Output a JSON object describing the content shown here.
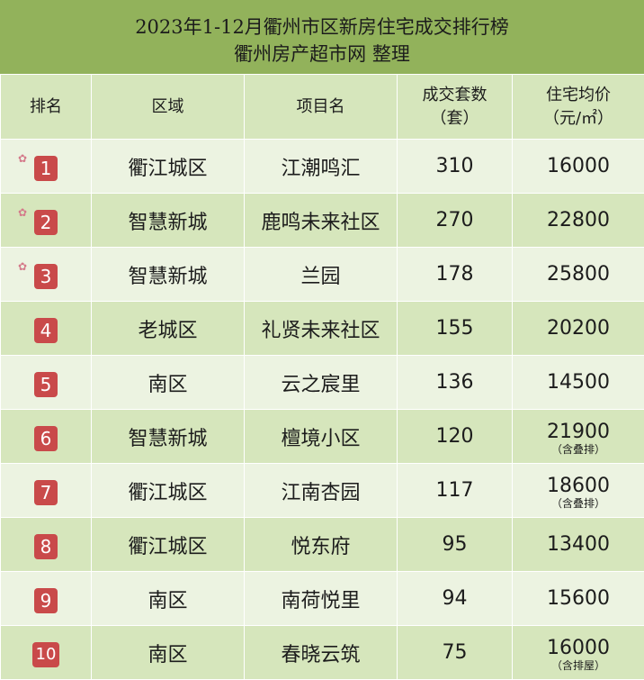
{
  "title_line1": "2023年1-12月衢州市区新房住宅成交排行榜",
  "title_line2": "衢州房产超市网  整理",
  "headers": {
    "rank": "排名",
    "district": "区域",
    "project": "项目名",
    "deals_line1": "成交套数",
    "deals_line2": "（套）",
    "price_line1": "住宅均价",
    "price_line2": "（元/㎡）"
  },
  "rows": [
    {
      "rank": "1",
      "district": "衢江城区",
      "project": "江潮鸣汇",
      "deals": "310",
      "price": "16000",
      "note": ""
    },
    {
      "rank": "2",
      "district": "智慧新城",
      "project": "鹿鸣未来社区",
      "deals": "270",
      "price": "22800",
      "note": ""
    },
    {
      "rank": "3",
      "district": "智慧新城",
      "project": "兰园",
      "deals": "178",
      "price": "25800",
      "note": ""
    },
    {
      "rank": "4",
      "district": "老城区",
      "project": "礼贤未来社区",
      "deals": "155",
      "price": "20200",
      "note": ""
    },
    {
      "rank": "5",
      "district": "南区",
      "project": "云之宸里",
      "deals": "136",
      "price": "14500",
      "note": ""
    },
    {
      "rank": "6",
      "district": "智慧新城",
      "project": "檀境小区",
      "deals": "120",
      "price": "21900",
      "note": "（含叠排）"
    },
    {
      "rank": "7",
      "district": "衢江城区",
      "project": "江南杏园",
      "deals": "117",
      "price": "18600",
      "note": "（含叠排）"
    },
    {
      "rank": "8",
      "district": "衢江城区",
      "project": "悦东府",
      "deals": "95",
      "price": "13400",
      "note": ""
    },
    {
      "rank": "9",
      "district": "南区",
      "project": "南荷悦里",
      "deals": "94",
      "price": "15600",
      "note": ""
    },
    {
      "rank": "10",
      "district": "南区",
      "project": "春晓云筑",
      "deals": "75",
      "price": "16000",
      "note": "（含排屋）"
    }
  ],
  "colors": {
    "header_green": "#92b25b",
    "row_light": "#ecf3e1",
    "row_dark": "#d6e6bc",
    "badge_red": "#c94a4a"
  }
}
